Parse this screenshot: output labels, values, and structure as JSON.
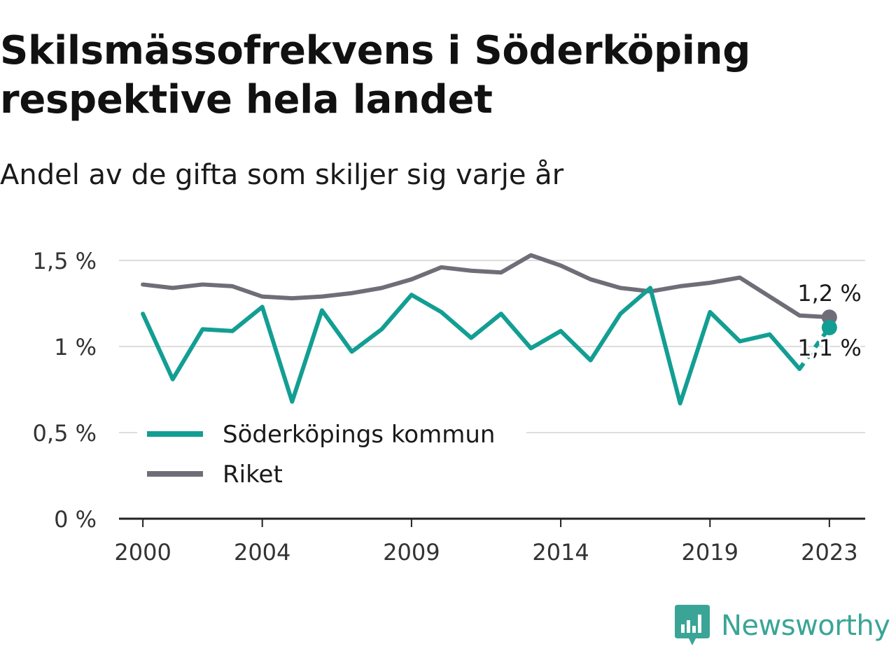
{
  "title": "Skilsmässofrekvens i Söderköping respektive hela landet",
  "subtitle": "Andel av de gifta som skiljer sig varje år",
  "brand": {
    "name": "Newsworthy",
    "color": "#3aa596",
    "icon": "bar-chart-speech-bubble-icon"
  },
  "chart_data": {
    "type": "line",
    "title": "Skilsmässofrekvens i Söderköping respektive hela landet",
    "subtitle": "Andel av de gifta som skiljer sig varje år",
    "xlabel": "",
    "ylabel": "",
    "x": [
      2000,
      2001,
      2002,
      2003,
      2004,
      2005,
      2006,
      2007,
      2008,
      2009,
      2010,
      2011,
      2012,
      2013,
      2014,
      2015,
      2016,
      2017,
      2018,
      2019,
      2020,
      2021,
      2022,
      2023
    ],
    "xlim": [
      1999.2,
      2024.2
    ],
    "x_ticks": [
      2000,
      2004,
      2009,
      2014,
      2019,
      2023
    ],
    "ylim": [
      0,
      1.5
    ],
    "y_ticks": [
      0,
      0.5,
      1,
      1.5
    ],
    "y_tick_labels": [
      "0 %",
      "0,5 %",
      "1 %",
      "1,5 %"
    ],
    "grid": "horizontal",
    "legend_position": "bottom-left",
    "series": [
      {
        "name": "Söderköpings kommun",
        "color": "#139e93",
        "values": [
          1.19,
          0.81,
          1.1,
          1.09,
          1.23,
          0.68,
          1.21,
          0.97,
          1.1,
          1.3,
          1.2,
          1.05,
          1.19,
          0.99,
          1.09,
          0.92,
          1.19,
          1.34,
          0.67,
          1.2,
          1.03,
          1.07,
          0.87,
          1.11
        ],
        "dashed_last_segment": true,
        "end_label": "1,1 %"
      },
      {
        "name": "Riket",
        "color": "#6f6e78",
        "values": [
          1.36,
          1.34,
          1.36,
          1.35,
          1.29,
          1.28,
          1.29,
          1.31,
          1.34,
          1.39,
          1.46,
          1.44,
          1.43,
          1.53,
          1.47,
          1.39,
          1.34,
          1.32,
          1.35,
          1.37,
          1.4,
          1.29,
          1.18,
          1.17
        ],
        "dashed_last_segment": false,
        "end_label": "1,2 %"
      }
    ]
  }
}
